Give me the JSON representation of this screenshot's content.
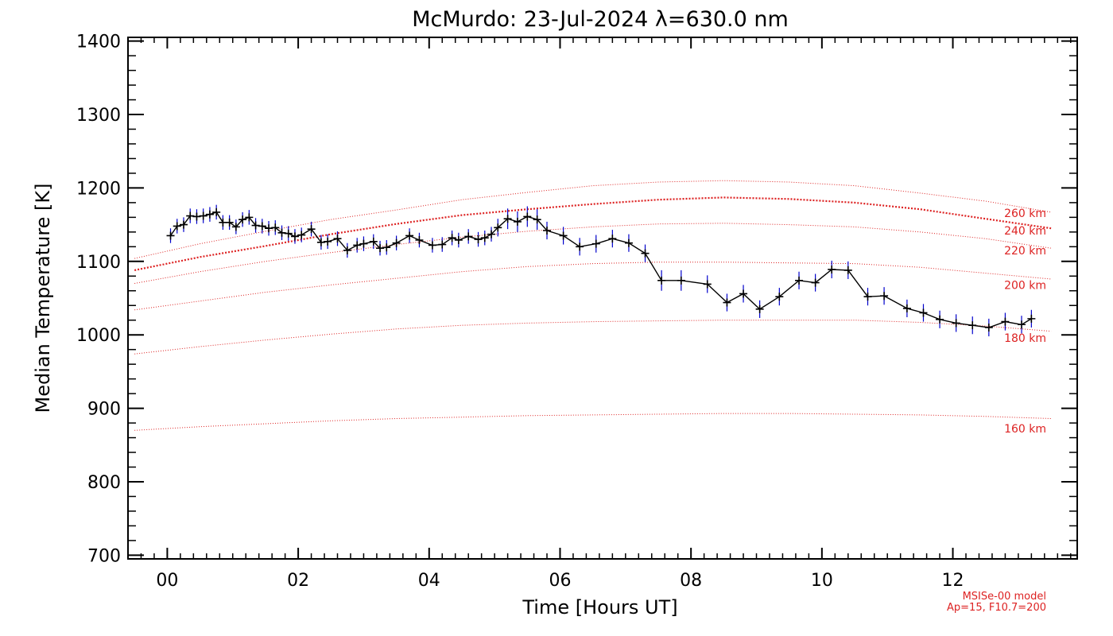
{
  "chart_data": {
    "type": "line",
    "title": "McMurdo: 23-Jul-2024 λ=630.0 nm",
    "xlabel": "Time [Hours UT]",
    "ylabel": "Median Temperature [K]",
    "xlim": [
      -0.6,
      13.9
    ],
    "ylim": [
      695,
      1405
    ],
    "xticks": [
      0,
      2,
      4,
      6,
      8,
      10,
      12
    ],
    "xtick_labels": [
      "00",
      "02",
      "04",
      "06",
      "08",
      "10",
      "12"
    ],
    "yticks": [
      700,
      800,
      900,
      1000,
      1100,
      1200,
      1300,
      1400
    ],
    "ytick_labels": [
      "700",
      "800",
      "900",
      "1000",
      "1100",
      "1200",
      "1300",
      "1400"
    ],
    "grid": false,
    "model_note": [
      "MSISe-00 model",
      "Ap=15, F10.7=200"
    ],
    "colors": {
      "data": "#000000",
      "errorbar": "#0000cc",
      "model": "#dd2222",
      "axis": "#000000"
    },
    "series": [
      {
        "role": "observed",
        "x": [
          0.05,
          0.15,
          0.25,
          0.35,
          0.45,
          0.55,
          0.65,
          0.75,
          0.85,
          0.95,
          1.05,
          1.15,
          1.25,
          1.35,
          1.45,
          1.55,
          1.65,
          1.75,
          1.85,
          1.95,
          2.05,
          2.2,
          2.35,
          2.45,
          2.6,
          2.75,
          2.9,
          3.0,
          3.15,
          3.25,
          3.35,
          3.5,
          3.7,
          3.85,
          4.05,
          4.2,
          4.35,
          4.45,
          4.6,
          4.75,
          4.85,
          4.95,
          5.05,
          5.2,
          5.35,
          5.5,
          5.65,
          5.8,
          6.05,
          6.3,
          6.55,
          6.8,
          7.05,
          7.3,
          7.55,
          7.85,
          8.25,
          8.55,
          8.8,
          9.05,
          9.35,
          9.65,
          9.9,
          10.15,
          10.4,
          10.7,
          10.95,
          11.3,
          11.55,
          11.8,
          12.05,
          12.3,
          12.55,
          12.8,
          13.05,
          13.2
        ],
        "values": [
          1135,
          1148,
          1150,
          1162,
          1161,
          1162,
          1164,
          1167,
          1153,
          1153,
          1147,
          1157,
          1160,
          1149,
          1148,
          1145,
          1146,
          1139,
          1138,
          1134,
          1136,
          1144,
          1126,
          1127,
          1131,
          1115,
          1122,
          1124,
          1127,
          1118,
          1119,
          1125,
          1135,
          1129,
          1122,
          1123,
          1132,
          1129,
          1134,
          1130,
          1132,
          1137,
          1146,
          1158,
          1154,
          1161,
          1157,
          1142,
          1135,
          1120,
          1124,
          1131,
          1125,
          1111,
          1074,
          1074,
          1069,
          1044,
          1056,
          1035,
          1052,
          1074,
          1071,
          1089,
          1088,
          1052,
          1053,
          1036,
          1030,
          1021,
          1016,
          1013,
          1010,
          1018,
          1014,
          1022
        ],
        "errors": [
          10,
          10,
          10,
          10,
          10,
          10,
          10,
          10,
          10,
          10,
          10,
          10,
          10,
          10,
          10,
          10,
          10,
          10,
          10,
          10,
          10,
          10,
          10,
          10,
          10,
          10,
          10,
          10,
          10,
          10,
          10,
          10,
          10,
          10,
          10,
          10,
          10,
          10,
          10,
          10,
          10,
          10,
          12,
          14,
          14,
          14,
          14,
          12,
          12,
          12,
          12,
          12,
          12,
          12,
          14,
          14,
          12,
          12,
          12,
          12,
          12,
          12,
          12,
          12,
          12,
          12,
          12,
          12,
          12,
          12,
          12,
          12,
          12,
          12,
          12,
          12
        ]
      },
      {
        "role": "model",
        "name": "160 km",
        "label": "160 km",
        "x": [
          -0.5,
          0.5,
          1.5,
          2.5,
          3.5,
          4.5,
          5.5,
          6.5,
          7.5,
          8.5,
          9.5,
          10.5,
          11.5,
          12.5,
          13.5
        ],
        "values": [
          870,
          875,
          879,
          883,
          886,
          888,
          890,
          891,
          892,
          893,
          893,
          892,
          891,
          889,
          886
        ]
      },
      {
        "role": "model",
        "name": "180 km",
        "label": "180 km",
        "x": [
          -0.5,
          0.5,
          1.5,
          2.5,
          3.5,
          4.5,
          5.5,
          6.5,
          7.5,
          8.5,
          9.5,
          10.5,
          11.5,
          12.5,
          13.5
        ],
        "values": [
          974,
          984,
          993,
          1001,
          1008,
          1013,
          1016,
          1018,
          1019,
          1020,
          1020,
          1020,
          1017,
          1012,
          1005
        ]
      },
      {
        "role": "model",
        "name": "200 km",
        "label": "200 km",
        "x": [
          -0.5,
          0.5,
          1.5,
          2.5,
          3.5,
          4.5,
          5.5,
          6.5,
          7.5,
          8.5,
          9.5,
          10.5,
          11.5,
          12.5,
          13.5
        ],
        "values": [
          1034,
          1046,
          1058,
          1068,
          1077,
          1086,
          1093,
          1097,
          1099,
          1099,
          1098,
          1097,
          1092,
          1084,
          1076
        ]
      },
      {
        "role": "model",
        "name": "220 km",
        "label": "220 km",
        "x": [
          -0.5,
          0.5,
          1.5,
          2.5,
          3.5,
          4.5,
          5.5,
          6.5,
          7.5,
          8.5,
          9.5,
          10.5,
          11.5,
          12.5,
          13.5
        ],
        "values": [
          1070,
          1086,
          1100,
          1112,
          1123,
          1133,
          1141,
          1147,
          1151,
          1152,
          1150,
          1147,
          1140,
          1131,
          1118
        ]
      },
      {
        "role": "model",
        "name": "240 km",
        "label": "240 km",
        "x": [
          -0.5,
          0.5,
          1.5,
          2.5,
          3.5,
          4.5,
          5.5,
          6.5,
          7.5,
          8.5,
          9.5,
          10.5,
          11.5,
          12.5,
          13.5
        ],
        "values": [
          1088,
          1106,
          1121,
          1137,
          1151,
          1163,
          1171,
          1178,
          1184,
          1187,
          1185,
          1180,
          1171,
          1158,
          1145
        ]
      },
      {
        "role": "model",
        "name": "260 km",
        "label": "260 km",
        "x": [
          -0.5,
          0.5,
          1.5,
          2.5,
          3.5,
          4.5,
          5.5,
          6.5,
          7.5,
          8.5,
          9.5,
          10.5,
          11.5,
          12.5,
          13.5
        ],
        "values": [
          1104,
          1124,
          1141,
          1157,
          1170,
          1184,
          1194,
          1203,
          1208,
          1210,
          1208,
          1203,
          1193,
          1182,
          1167
        ]
      }
    ]
  }
}
